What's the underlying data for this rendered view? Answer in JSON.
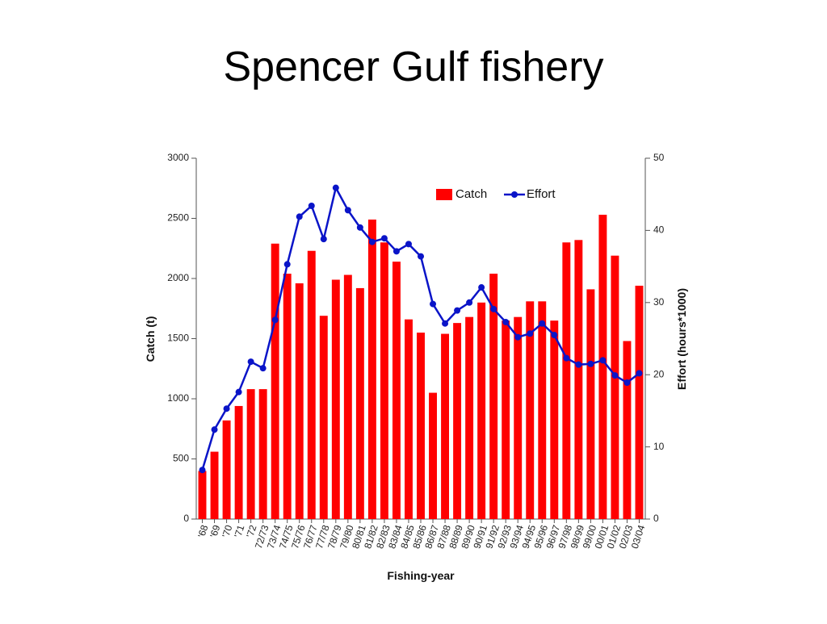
{
  "chart_data": {
    "type": "bar-line",
    "title": "Spencer Gulf fishery",
    "x_label": "Fishing-year",
    "y_label": "Catch (t)",
    "y2_label": "Effort (hours*1000)",
    "categories": [
      "'68",
      "'69",
      "'70",
      "'71",
      "'72",
      "72/73",
      "73/74",
      "74/75",
      "75/76",
      "76/77",
      "77/78",
      "78/79",
      "79/80",
      "80/81",
      "81/82",
      "82/83",
      "83/84",
      "84/85",
      "85/86",
      "86/87",
      "87/88",
      "88/89",
      "89/90",
      "90/91",
      "91/92",
      "92/93",
      "93/94",
      "94/95",
      "95/96",
      "96/97",
      "97/98",
      "98/99",
      "99/00",
      "00/01",
      "01/02",
      "02/03",
      "03/04"
    ],
    "series": [
      {
        "name": "Catch",
        "type": "bar",
        "color": "#ff0000",
        "values": [
          400,
          560,
          820,
          940,
          1080,
          1080,
          2290,
          2040,
          1960,
          2230,
          1690,
          1990,
          2030,
          1920,
          2490,
          2300,
          2140,
          1660,
          1550,
          1050,
          1540,
          1630,
          1680,
          1800,
          2040,
          1650,
          1680,
          1810,
          1810,
          1650,
          2300,
          2320,
          1910,
          2530,
          2190,
          1480,
          1940
        ]
      },
      {
        "name": "Effort",
        "type": "line",
        "axis": "y2",
        "color": "#0a14c8",
        "values": [
          6.8,
          12.4,
          15.3,
          17.6,
          21.8,
          20.9,
          27.6,
          35.3,
          41.9,
          43.4,
          38.8,
          45.9,
          42.8,
          40.4,
          38.4,
          38.9,
          37.1,
          38.1,
          36.4,
          29.8,
          27.1,
          28.9,
          30.0,
          32.1,
          29.1,
          27.3,
          25.2,
          25.7,
          27.1,
          25.5,
          22.3,
          21.4,
          21.5,
          22.0,
          19.9,
          18.9,
          20.2
        ]
      }
    ],
    "ylim": [
      0,
      3000
    ],
    "yticks": [
      0,
      500,
      1000,
      1500,
      2000,
      2500,
      3000
    ],
    "y2lim": [
      0,
      50
    ],
    "y2ticks": [
      0,
      10,
      20,
      30,
      40,
      50
    ],
    "legend": "top-right"
  }
}
